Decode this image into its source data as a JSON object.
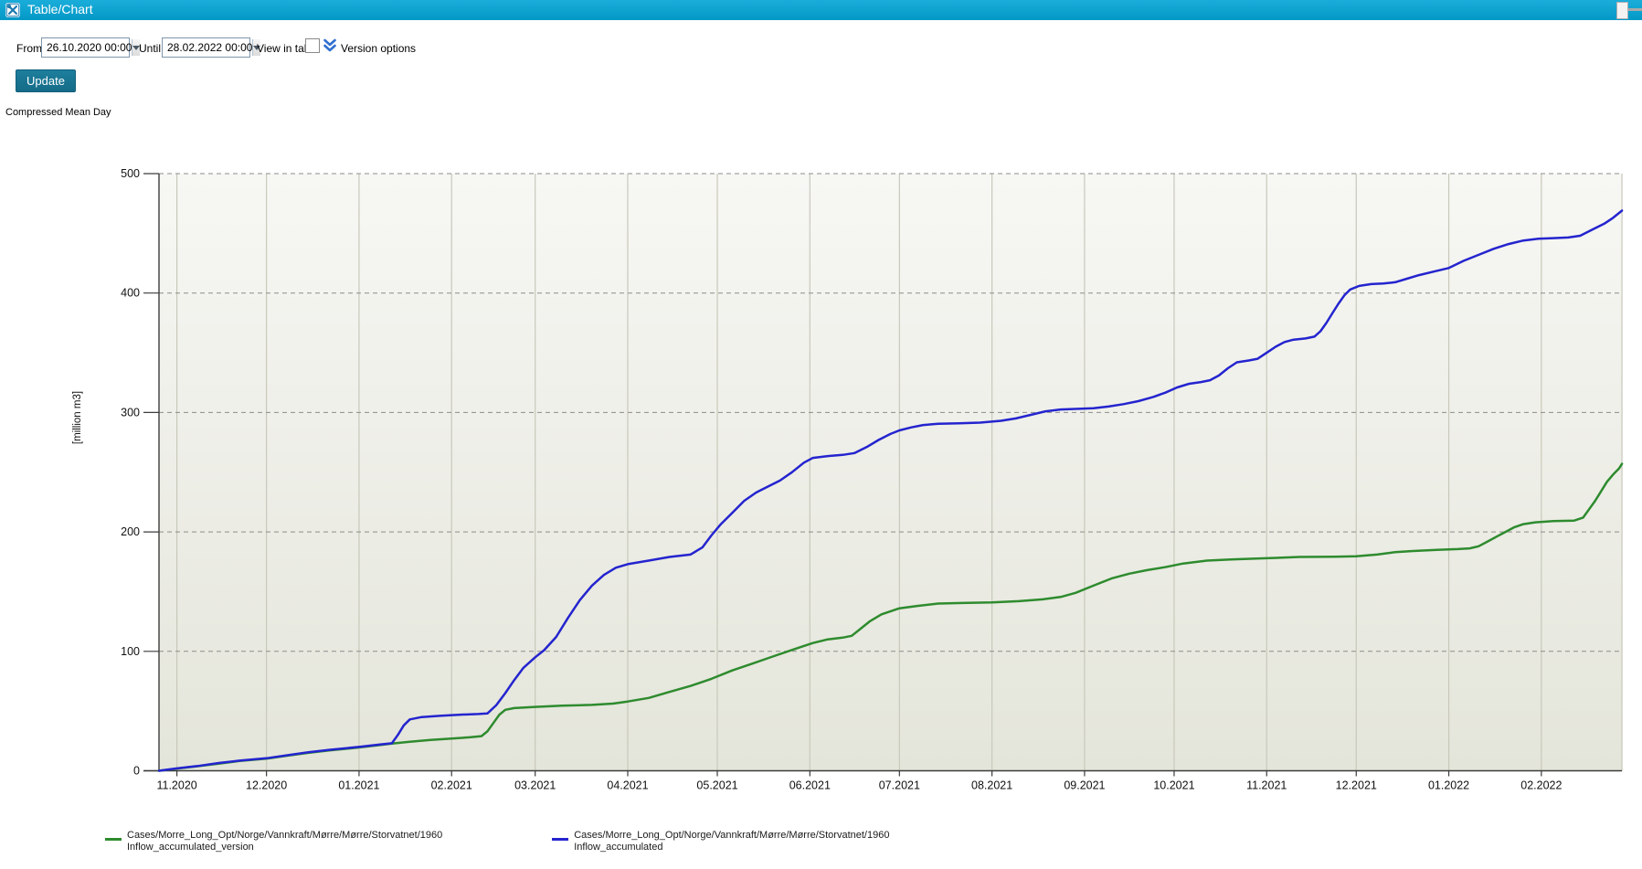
{
  "window": {
    "title": "Table/Chart"
  },
  "toolbar": {
    "from_label": "From",
    "from_value": "26.10.2020 00:00",
    "until_label": "Until",
    "until_value": "28.02.2022 00:00",
    "view_in_table_label": "View in table",
    "version_options_label": "Version options",
    "update_label": "Update"
  },
  "chart_header": "Compressed Mean Day",
  "chart_data": {
    "type": "line",
    "title": "Compressed Mean Day",
    "ylabel": "[million m3]",
    "ylim": [
      0,
      500
    ],
    "y_ticks": [
      0,
      100,
      200,
      300,
      400,
      500
    ],
    "x_range": [
      "2020-10-26",
      "2022-02-28"
    ],
    "x_ticks": [
      {
        "date": "2020-11-01",
        "label": "11.2020"
      },
      {
        "date": "2020-12-01",
        "label": "12.2020"
      },
      {
        "date": "2021-01-01",
        "label": "01.2021"
      },
      {
        "date": "2021-02-01",
        "label": "02.2021"
      },
      {
        "date": "2021-03-01",
        "label": "03.2021"
      },
      {
        "date": "2021-04-01",
        "label": "04.2021"
      },
      {
        "date": "2021-05-01",
        "label": "05.2021"
      },
      {
        "date": "2021-06-01",
        "label": "06.2021"
      },
      {
        "date": "2021-07-01",
        "label": "07.2021"
      },
      {
        "date": "2021-08-01",
        "label": "08.2021"
      },
      {
        "date": "2021-09-01",
        "label": "09.2021"
      },
      {
        "date": "2021-10-01",
        "label": "10.2021"
      },
      {
        "date": "2021-11-01",
        "label": "11.2021"
      },
      {
        "date": "2021-12-01",
        "label": "12.2021"
      },
      {
        "date": "2022-01-01",
        "label": "01.2022"
      },
      {
        "date": "2022-02-01",
        "label": "02.2022"
      }
    ],
    "grid": {
      "vertical": "solid",
      "horizontal": "dashed"
    },
    "legend_position": "bottom",
    "colors": {
      "plot_bg_top": "#f7f7f4",
      "plot_bg_bottom": "#e4e5da",
      "grid_vertical": "#c8c9bb",
      "grid_dashed": "#8c8c8c",
      "axis": "#3c3c3c",
      "accent_titlebar": "#0aa3cf",
      "accent_button": "#176f8e",
      "chevron_blue": "#2f6fd1"
    },
    "legend": [
      {
        "line1": "Cases/Morre_Long_Opt/Norge/Vannkraft/Mørre/Mørre/Storvatnet/1960",
        "line2": "Inflow_accumulated_version",
        "color": "#2e8b2e"
      },
      {
        "line1": "Cases/Morre_Long_Opt/Norge/Vannkraft/Mørre/Mørre/Storvatnet/1960",
        "line2": "Inflow_accumulated",
        "color": "#2424cf"
      }
    ],
    "series": [
      {
        "name": "Cases/Morre_Long_Opt/Norge/Vannkraft/Mørre/Mørre/Storvatnet/1960 Inflow_accumulated_version",
        "color": "#2e8b2e",
        "points": [
          [
            "2020-10-26",
            0
          ],
          [
            "2020-11-01",
            1.8
          ],
          [
            "2020-11-08",
            3.8
          ],
          [
            "2020-11-15",
            6
          ],
          [
            "2020-11-22",
            8.2
          ],
          [
            "2020-12-01",
            10.2
          ],
          [
            "2020-12-08",
            12.6
          ],
          [
            "2020-12-15",
            15
          ],
          [
            "2020-12-22",
            17
          ],
          [
            "2021-01-01",
            19.5
          ],
          [
            "2021-01-08",
            21.5
          ],
          [
            "2021-01-12",
            22.8
          ],
          [
            "2021-01-18",
            24.3
          ],
          [
            "2021-01-25",
            25.8
          ],
          [
            "2021-02-01",
            27
          ],
          [
            "2021-02-07",
            28
          ],
          [
            "2021-02-11",
            29
          ],
          [
            "2021-02-13",
            33
          ],
          [
            "2021-02-15",
            40
          ],
          [
            "2021-02-17",
            47
          ],
          [
            "2021-02-19",
            51
          ],
          [
            "2021-02-22",
            52.5
          ],
          [
            "2021-03-01",
            53.5
          ],
          [
            "2021-03-10",
            54.5
          ],
          [
            "2021-03-20",
            55.2
          ],
          [
            "2021-03-27",
            56.2
          ],
          [
            "2021-04-01",
            58
          ],
          [
            "2021-04-08",
            61
          ],
          [
            "2021-04-15",
            66
          ],
          [
            "2021-04-22",
            71
          ],
          [
            "2021-04-29",
            77
          ],
          [
            "2021-05-06",
            84
          ],
          [
            "2021-05-13",
            90
          ],
          [
            "2021-05-20",
            96
          ],
          [
            "2021-05-27",
            102
          ],
          [
            "2021-06-02",
            107
          ],
          [
            "2021-06-07",
            110
          ],
          [
            "2021-06-12",
            111.5
          ],
          [
            "2021-06-15",
            113
          ],
          [
            "2021-06-18",
            119
          ],
          [
            "2021-06-21",
            125
          ],
          [
            "2021-06-25",
            131
          ],
          [
            "2021-07-01",
            136
          ],
          [
            "2021-07-07",
            138
          ],
          [
            "2021-07-14",
            140
          ],
          [
            "2021-07-22",
            140.5
          ],
          [
            "2021-08-01",
            141
          ],
          [
            "2021-08-10",
            142
          ],
          [
            "2021-08-18",
            143.5
          ],
          [
            "2021-08-24",
            145.5
          ],
          [
            "2021-08-29",
            149
          ],
          [
            "2021-09-04",
            155
          ],
          [
            "2021-09-10",
            161
          ],
          [
            "2021-09-16",
            165
          ],
          [
            "2021-09-22",
            168
          ],
          [
            "2021-09-28",
            170.5
          ],
          [
            "2021-10-04",
            173.5
          ],
          [
            "2021-10-12",
            176
          ],
          [
            "2021-10-20",
            177
          ],
          [
            "2021-11-01",
            178
          ],
          [
            "2021-11-12",
            179
          ],
          [
            "2021-11-24",
            179.3
          ],
          [
            "2021-12-01",
            179.6
          ],
          [
            "2021-12-08",
            181
          ],
          [
            "2021-12-14",
            183
          ],
          [
            "2021-12-20",
            184
          ],
          [
            "2021-12-28",
            185
          ],
          [
            "2022-01-04",
            185.6
          ],
          [
            "2022-01-08",
            186.2
          ],
          [
            "2022-01-11",
            188
          ],
          [
            "2022-01-14",
            192
          ],
          [
            "2022-01-17",
            196
          ],
          [
            "2022-01-20",
            200
          ],
          [
            "2022-01-23",
            204
          ],
          [
            "2022-01-26",
            206.5
          ],
          [
            "2022-01-30",
            208
          ],
          [
            "2022-02-05",
            209
          ],
          [
            "2022-02-12",
            209.5
          ],
          [
            "2022-02-15",
            212
          ],
          [
            "2022-02-17",
            219
          ],
          [
            "2022-02-19",
            226
          ],
          [
            "2022-02-21",
            234
          ],
          [
            "2022-02-23",
            242
          ],
          [
            "2022-02-25",
            248
          ],
          [
            "2022-02-27",
            253
          ],
          [
            "2022-02-28",
            257
          ]
        ]
      },
      {
        "name": "Cases/Morre_Long_Opt/Norge/Vannkraft/Mørre/Mørre/Storvatnet/1960 Inflow_accumulated",
        "color": "#2424cf",
        "points": [
          [
            "2020-10-26",
            0
          ],
          [
            "2020-11-01",
            2
          ],
          [
            "2020-11-08",
            4
          ],
          [
            "2020-11-15",
            6.5
          ],
          [
            "2020-11-22",
            8.5
          ],
          [
            "2020-12-01",
            10.5
          ],
          [
            "2020-12-08",
            13
          ],
          [
            "2020-12-15",
            15.5
          ],
          [
            "2020-12-22",
            17.5
          ],
          [
            "2021-01-01",
            20
          ],
          [
            "2021-01-08",
            22
          ],
          [
            "2021-01-12",
            23
          ],
          [
            "2021-01-14",
            30
          ],
          [
            "2021-01-16",
            38
          ],
          [
            "2021-01-18",
            43
          ],
          [
            "2021-01-22",
            45
          ],
          [
            "2021-01-28",
            46
          ],
          [
            "2021-02-04",
            47
          ],
          [
            "2021-02-10",
            47.5
          ],
          [
            "2021-02-13",
            48
          ],
          [
            "2021-02-16",
            55
          ],
          [
            "2021-02-19",
            65
          ],
          [
            "2021-02-22",
            76
          ],
          [
            "2021-02-25",
            86
          ],
          [
            "2021-03-01",
            95
          ],
          [
            "2021-03-04",
            101
          ],
          [
            "2021-03-08",
            112
          ],
          [
            "2021-03-12",
            128
          ],
          [
            "2021-03-16",
            143
          ],
          [
            "2021-03-20",
            155
          ],
          [
            "2021-03-24",
            164
          ],
          [
            "2021-03-28",
            170
          ],
          [
            "2021-04-01",
            173
          ],
          [
            "2021-04-08",
            176
          ],
          [
            "2021-04-15",
            179
          ],
          [
            "2021-04-22",
            181
          ],
          [
            "2021-04-26",
            187
          ],
          [
            "2021-04-29",
            197
          ],
          [
            "2021-05-02",
            206
          ],
          [
            "2021-05-06",
            216
          ],
          [
            "2021-05-10",
            226
          ],
          [
            "2021-05-14",
            233
          ],
          [
            "2021-05-18",
            238
          ],
          [
            "2021-05-22",
            243
          ],
          [
            "2021-05-26",
            250
          ],
          [
            "2021-05-30",
            258
          ],
          [
            "2021-06-02",
            262
          ],
          [
            "2021-06-07",
            263.5
          ],
          [
            "2021-06-12",
            264.5
          ],
          [
            "2021-06-16",
            266
          ],
          [
            "2021-06-20",
            271
          ],
          [
            "2021-06-24",
            277
          ],
          [
            "2021-06-28",
            282
          ],
          [
            "2021-07-01",
            285
          ],
          [
            "2021-07-05",
            287.5
          ],
          [
            "2021-07-09",
            289.5
          ],
          [
            "2021-07-14",
            290.5
          ],
          [
            "2021-07-21",
            291
          ],
          [
            "2021-07-28",
            291.5
          ],
          [
            "2021-08-04",
            293
          ],
          [
            "2021-08-09",
            295
          ],
          [
            "2021-08-14",
            298
          ],
          [
            "2021-08-19",
            301
          ],
          [
            "2021-08-24",
            302.5
          ],
          [
            "2021-08-29",
            303
          ],
          [
            "2021-09-04",
            303.5
          ],
          [
            "2021-09-09",
            305
          ],
          [
            "2021-09-14",
            307
          ],
          [
            "2021-09-19",
            309.5
          ],
          [
            "2021-09-24",
            313
          ],
          [
            "2021-09-28",
            316.5
          ],
          [
            "2021-10-02",
            321
          ],
          [
            "2021-10-06",
            324
          ],
          [
            "2021-10-10",
            325.5
          ],
          [
            "2021-10-13",
            327
          ],
          [
            "2021-10-16",
            331
          ],
          [
            "2021-10-19",
            337
          ],
          [
            "2021-10-22",
            342
          ],
          [
            "2021-10-26",
            343.5
          ],
          [
            "2021-10-29",
            345
          ],
          [
            "2021-11-01",
            350
          ],
          [
            "2021-11-04",
            355
          ],
          [
            "2021-11-07",
            359
          ],
          [
            "2021-11-10",
            361
          ],
          [
            "2021-11-14",
            362
          ],
          [
            "2021-11-17",
            363.5
          ],
          [
            "2021-11-19",
            368
          ],
          [
            "2021-11-21",
            375
          ],
          [
            "2021-11-23",
            383
          ],
          [
            "2021-11-25",
            391
          ],
          [
            "2021-11-27",
            398
          ],
          [
            "2021-11-29",
            403
          ],
          [
            "2021-12-02",
            406
          ],
          [
            "2021-12-06",
            407.5
          ],
          [
            "2021-12-10",
            408
          ],
          [
            "2021-12-14",
            409
          ],
          [
            "2021-12-18",
            412
          ],
          [
            "2021-12-22",
            415
          ],
          [
            "2021-12-27",
            418
          ],
          [
            "2022-01-01",
            421
          ],
          [
            "2022-01-06",
            427
          ],
          [
            "2022-01-11",
            432
          ],
          [
            "2022-01-16",
            437
          ],
          [
            "2022-01-21",
            441
          ],
          [
            "2022-01-26",
            444
          ],
          [
            "2022-01-31",
            445.5
          ],
          [
            "2022-02-05",
            446
          ],
          [
            "2022-02-10",
            446.5
          ],
          [
            "2022-02-14",
            448
          ],
          [
            "2022-02-18",
            453
          ],
          [
            "2022-02-22",
            458
          ],
          [
            "2022-02-25",
            463
          ],
          [
            "2022-02-28",
            469
          ]
        ]
      }
    ]
  }
}
